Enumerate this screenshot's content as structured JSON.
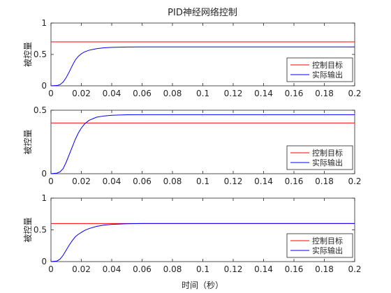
{
  "figure_title": "PID神经网络控制",
  "xlabel": "时间（秒）",
  "chart_data": [
    {
      "type": "line",
      "ylabel": "被控量",
      "xlim": [
        0,
        0.2
      ],
      "ylim": [
        0,
        1
      ],
      "x_ticks": [
        "0",
        "0.02",
        "0.04",
        "0.06",
        "0.08",
        "0.1",
        "0.12",
        "0.14",
        "0.16",
        "0.18",
        "0.2"
      ],
      "y_ticks": [
        "0",
        "0.5",
        "1"
      ],
      "legend_position": "right",
      "series": [
        {
          "name": "控制目标",
          "color": "#ff0000",
          "x": [
            0,
            0.2
          ],
          "y": [
            0.7,
            0.7
          ]
        },
        {
          "name": "实际输出",
          "color": "#0000ff",
          "x": [
            0,
            0.004,
            0.006,
            0.008,
            0.01,
            0.012,
            0.014,
            0.016,
            0.018,
            0.02,
            0.022,
            0.025,
            0.03,
            0.035,
            0.04,
            0.05,
            0.06,
            0.08,
            0.1,
            0.2
          ],
          "y": [
            0,
            0.005,
            0.02,
            0.06,
            0.13,
            0.22,
            0.32,
            0.41,
            0.47,
            0.51,
            0.54,
            0.566,
            0.592,
            0.605,
            0.612,
            0.618,
            0.62,
            0.62,
            0.62,
            0.62
          ]
        }
      ]
    },
    {
      "type": "line",
      "ylabel": "被控量",
      "xlim": [
        0,
        0.2
      ],
      "ylim": [
        0,
        0.5
      ],
      "x_ticks": [
        "0",
        "0.02",
        "0.04",
        "0.06",
        "0.08",
        "0.1",
        "0.12",
        "0.14",
        "0.16",
        "0.18",
        "0.2"
      ],
      "y_ticks": [
        "0",
        "0.5"
      ],
      "legend_position": "right",
      "series": [
        {
          "name": "控制目标",
          "color": "#ff0000",
          "x": [
            0,
            0.2
          ],
          "y": [
            0.4,
            0.4
          ]
        },
        {
          "name": "实际输出",
          "color": "#0000ff",
          "x": [
            0,
            0.004,
            0.006,
            0.008,
            0.01,
            0.012,
            0.014,
            0.016,
            0.018,
            0.02,
            0.022,
            0.025,
            0.03,
            0.035,
            0.04,
            0.05,
            0.06,
            0.08,
            0.1,
            0.2
          ],
          "y": [
            0,
            0.005,
            0.015,
            0.04,
            0.09,
            0.15,
            0.21,
            0.27,
            0.32,
            0.36,
            0.39,
            0.42,
            0.445,
            0.455,
            0.46,
            0.464,
            0.465,
            0.465,
            0.465,
            0.465
          ]
        }
      ]
    },
    {
      "type": "line",
      "ylabel": "被控量",
      "xlim": [
        0,
        0.2
      ],
      "ylim": [
        0,
        1
      ],
      "x_ticks": [
        "0",
        "0.02",
        "0.04",
        "0.06",
        "0.08",
        "0.1",
        "0.12",
        "0.14",
        "0.16",
        "0.18",
        "0.2"
      ],
      "y_ticks": [
        "0",
        "0.5",
        "1"
      ],
      "legend_position": "right",
      "series": [
        {
          "name": "控制目标",
          "color": "#ff0000",
          "x": [
            0,
            0.2
          ],
          "y": [
            0.6,
            0.6
          ]
        },
        {
          "name": "实际输出",
          "color": "#0000ff",
          "x": [
            0,
            0.004,
            0.006,
            0.008,
            0.01,
            0.012,
            0.014,
            0.016,
            0.018,
            0.02,
            0.022,
            0.025,
            0.03,
            0.035,
            0.04,
            0.05,
            0.06,
            0.08,
            0.1,
            0.2
          ],
          "y": [
            0,
            0.01,
            0.04,
            0.1,
            0.18,
            0.26,
            0.33,
            0.39,
            0.43,
            0.46,
            0.49,
            0.52,
            0.555,
            0.575,
            0.587,
            0.596,
            0.6,
            0.6,
            0.6,
            0.6
          ]
        }
      ]
    }
  ]
}
